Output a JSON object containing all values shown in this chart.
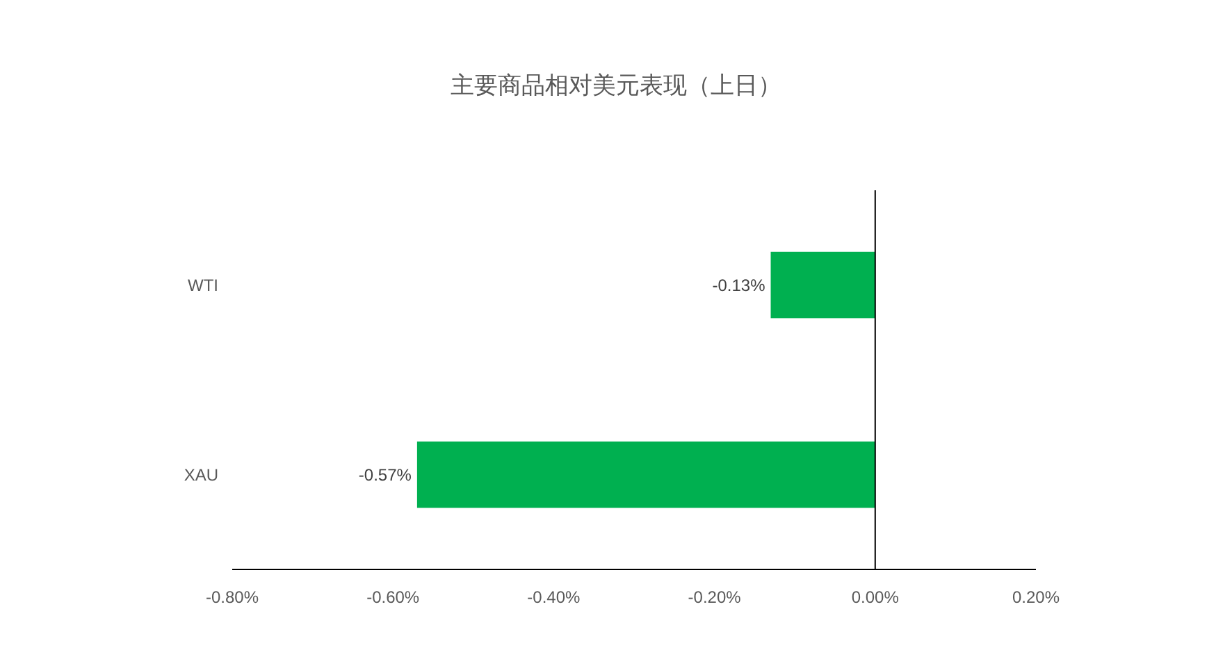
{
  "chart_data": {
    "type": "bar",
    "orientation": "horizontal",
    "title": "主要商品相对美元表现（上日）",
    "categories": [
      "WTI",
      "XAU"
    ],
    "values": [
      -0.13,
      -0.57
    ],
    "value_labels": [
      "-0.13%",
      "-0.57%"
    ],
    "color": "#00b050",
    "xlim": [
      -0.8,
      0.2
    ],
    "xticks": [
      {
        "value": -0.8,
        "label": "-0.80%"
      },
      {
        "value": -0.6,
        "label": "-0.60%"
      },
      {
        "value": -0.4,
        "label": "-0.40%"
      },
      {
        "value": -0.2,
        "label": "-0.20%"
      },
      {
        "value": 0,
        "label": "0.00%"
      },
      {
        "value": 0.2,
        "label": "0.20%"
      }
    ]
  }
}
